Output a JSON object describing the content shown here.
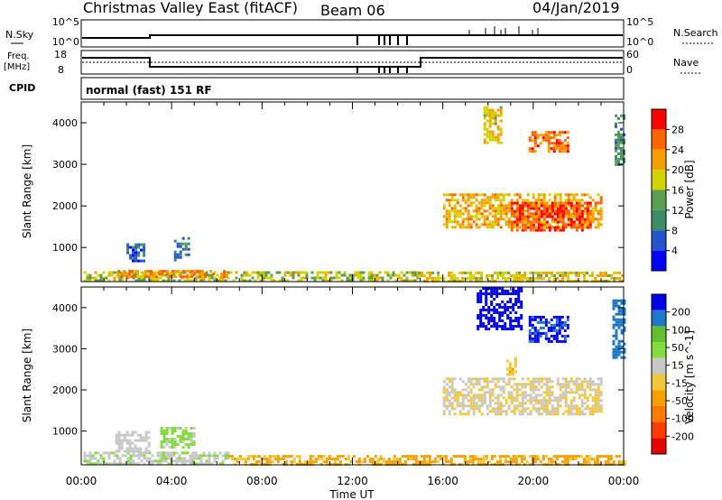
{
  "header": {
    "title": "Christmas Valley East (fitACF)",
    "beam": "Beam 06",
    "date": "04/Jan/2019"
  },
  "top_panels": {
    "nsky_label": "N.Sky",
    "nsky_ticks": [
      "10^5",
      "10^0"
    ],
    "nsearch_label": "N.Search",
    "nsearch_ticks": [
      "10^5",
      "10^0"
    ],
    "freq_label_1": "Freq.",
    "freq_label_2": "[MHz]",
    "freq_ticks": [
      "18",
      "8"
    ],
    "nave_label": "Nave",
    "nave_ticks": [
      "60",
      "0"
    ],
    "cpid_label": "CPID",
    "cpid_text": "normal (fast) 151 RF"
  },
  "colors": {
    "power_scale": [
      "#0000ff",
      "#2255cc",
      "#3c8c64",
      "#5aa050",
      "#d2d200",
      "#f5a000",
      "#ff6400",
      "#ff0000"
    ],
    "velocity_scale": [
      "#0000e6",
      "#1e78c8",
      "#64be32",
      "#82dc3c",
      "#c8c8c8",
      "#f0c83c",
      "#f5a000",
      "#ff7800",
      "#ff3c00",
      "#e60000"
    ],
    "gate_bar": "#000000"
  },
  "chart_data": [
    {
      "type": "heatmap",
      "panel": "power",
      "ylabel": "Slant Range [km]",
      "yticks": [
        "4000",
        "3000",
        "2000",
        "1000"
      ],
      "ylim": [
        180,
        4500
      ],
      "xlim": [
        0,
        24
      ],
      "colorbar_label": "Power [dB]",
      "colorbar_ticks": [
        "28",
        "24",
        "20",
        "16",
        "12",
        "8",
        "4"
      ],
      "colorbar_range": [
        0,
        30
      ],
      "regions": [
        {
          "x_start": 0.1,
          "x_end": 14.9,
          "range_start": 200,
          "range_end": 430,
          "level": 16
        },
        {
          "x_start": 1.6,
          "x_end": 6.5,
          "range_start": 280,
          "range_end": 460,
          "level": 22
        },
        {
          "x_start": 2.0,
          "x_end": 2.8,
          "range_start": 650,
          "range_end": 1100,
          "level": 6
        },
        {
          "x_start": 4.1,
          "x_end": 4.8,
          "range_start": 700,
          "range_end": 1250,
          "level": 8
        },
        {
          "x_start": 14.9,
          "x_end": 24.0,
          "range_start": 200,
          "range_end": 420,
          "level": 18
        },
        {
          "x_start": 16.0,
          "x_end": 23.0,
          "range_start": 1500,
          "range_end": 2300,
          "level": 20
        },
        {
          "x_start": 19.0,
          "x_end": 22.5,
          "range_start": 1400,
          "range_end": 2100,
          "level": 26
        },
        {
          "x_start": 17.8,
          "x_end": 18.6,
          "range_start": 3500,
          "range_end": 4400,
          "level": 18
        },
        {
          "x_start": 19.8,
          "x_end": 21.5,
          "range_start": 3300,
          "range_end": 3800,
          "level": 24
        },
        {
          "x_start": 23.6,
          "x_end": 24.0,
          "range_start": 3000,
          "range_end": 4200,
          "level": 10
        }
      ]
    },
    {
      "type": "heatmap",
      "panel": "velocity",
      "ylabel": "Slant Range [km]",
      "yticks": [
        "4000",
        "3000",
        "2000",
        "1000"
      ],
      "ylim": [
        180,
        4500
      ],
      "xlim": [
        0,
        24
      ],
      "xlabel": "Time UT",
      "xticks": [
        "00:00",
        "04:00",
        "08:00",
        "12:00",
        "16:00",
        "20:00",
        "00:00"
      ],
      "colorbar_label": "Velocity [m s^-1]",
      "colorbar_ticks": [
        "200",
        "100",
        "50",
        "15",
        "-15",
        "-50",
        "-100",
        "-200"
      ],
      "colorbar_range": [
        -250,
        250
      ],
      "regions": [
        {
          "x_start": 0.1,
          "x_end": 6.5,
          "range_start": 200,
          "range_end": 500,
          "level": 45
        },
        {
          "x_start": 1.5,
          "x_end": 3.0,
          "range_start": 500,
          "range_end": 1000,
          "level": 20
        },
        {
          "x_start": 3.5,
          "x_end": 5.0,
          "range_start": 600,
          "range_end": 1100,
          "level": 60
        },
        {
          "x_start": 6.5,
          "x_end": 24.0,
          "range_start": 200,
          "range_end": 420,
          "level": -60
        },
        {
          "x_start": 16.0,
          "x_end": 23.0,
          "range_start": 1400,
          "range_end": 2300,
          "level": 0
        },
        {
          "x_start": 17.5,
          "x_end": 19.5,
          "range_start": 3500,
          "range_end": 4500,
          "level": 220
        },
        {
          "x_start": 19.8,
          "x_end": 21.5,
          "range_start": 3200,
          "range_end": 3800,
          "level": 210
        },
        {
          "x_start": 18.8,
          "x_end": 19.2,
          "range_start": 2400,
          "range_end": 2800,
          "level": -40
        },
        {
          "x_start": 23.5,
          "x_end": 24.0,
          "range_start": 2800,
          "range_end": 4200,
          "level": 180
        }
      ]
    }
  ]
}
